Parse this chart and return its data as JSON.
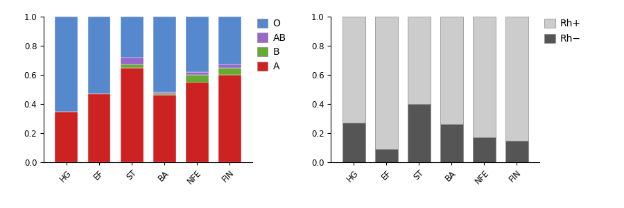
{
  "categories": [
    "HG",
    "EF",
    "ST",
    "BA",
    "NFE",
    "FIN"
  ],
  "blood_types": {
    "A": [
      0.35,
      0.47,
      0.65,
      0.46,
      0.55,
      0.6
    ],
    "B": [
      0.0,
      0.0,
      0.02,
      0.01,
      0.05,
      0.05
    ],
    "AB": [
      0.0,
      0.0,
      0.05,
      0.01,
      0.02,
      0.02
    ],
    "O": [
      0.65,
      0.53,
      0.28,
      0.52,
      0.38,
      0.33
    ]
  },
  "blood_colors": {
    "A": "#cc2222",
    "B": "#66aa33",
    "AB": "#9966cc",
    "O": "#5588cc"
  },
  "rh": {
    "Rh-": [
      0.27,
      0.09,
      0.4,
      0.26,
      0.17,
      0.15
    ],
    "Rh+": [
      0.73,
      0.91,
      0.6,
      0.74,
      0.83,
      0.85
    ]
  },
  "rh_colors": {
    "Rh-": "#555555",
    "Rh+": "#cccccc"
  },
  "ylim": [
    0.0,
    1.0
  ],
  "yticks": [
    0.0,
    0.2,
    0.4,
    0.6,
    0.8,
    1.0
  ],
  "background_color": "#ffffff",
  "bar_width": 0.7,
  "legend_fontsize": 10,
  "tick_fontsize": 8.5
}
